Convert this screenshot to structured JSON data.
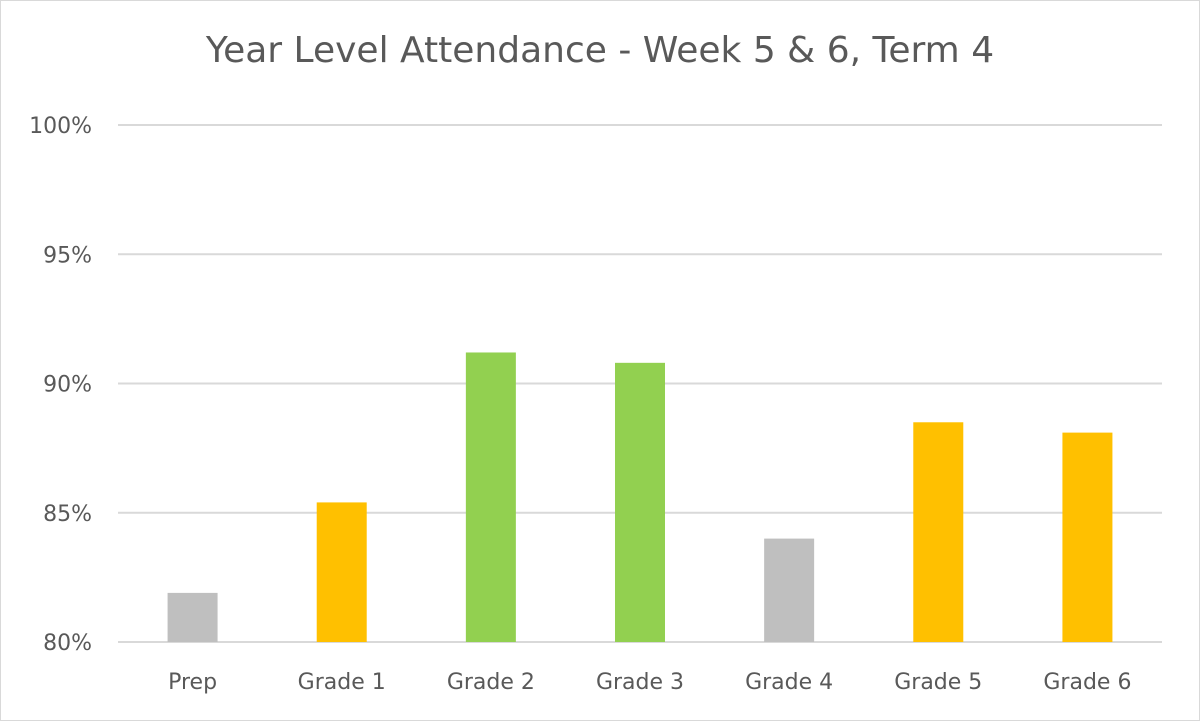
{
  "chart_data": {
    "type": "bar",
    "title": "Year Level Attendance - Week 5 & 6, Term 4",
    "xlabel": "",
    "ylabel": "",
    "categories": [
      "Prep",
      "Grade 1",
      "Grade 2",
      "Grade 3",
      "Grade 4",
      "Grade 5",
      "Grade 6"
    ],
    "values": [
      81.9,
      85.4,
      91.2,
      90.8,
      84.0,
      88.5,
      88.1
    ],
    "bar_colors": [
      "#bfbfbf",
      "#ffc000",
      "#92d050",
      "#92d050",
      "#bfbfbf",
      "#ffc000",
      "#ffc000"
    ],
    "ylim": [
      80,
      100
    ],
    "yticks": [
      80,
      85,
      90,
      95,
      100
    ],
    "ytick_labels": [
      "80%",
      "85%",
      "90%",
      "95%",
      "100%"
    ],
    "grid": true,
    "legend": "none"
  },
  "colors": {
    "gridline": "#d9d9d9",
    "axis_text": "#595959",
    "title_text": "#595959"
  }
}
